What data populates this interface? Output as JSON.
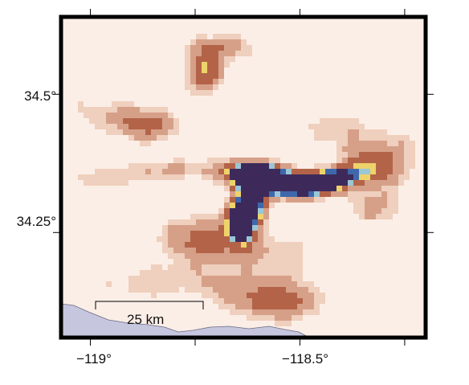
{
  "map": {
    "lat_range": [
      34.06,
      34.64
    ],
    "lon_range": [
      -119.07,
      -118.2
    ],
    "colors": {
      "background": "#fbeee7",
      "light": "#efcfbd",
      "medium": "#d6a088",
      "brown": "#b36448",
      "yellow": "#edd36a",
      "lightblue": "#9bc6d6",
      "blue": "#3f68ac",
      "darkpurple": "#3d2a5b",
      "ocean": "#c6c6df",
      "frame": "#000000"
    },
    "y_ticks": [
      {
        "value": 34.5,
        "label": "34.5°"
      },
      {
        "value": 34.25,
        "label": "34.25°"
      }
    ],
    "x_ticks": [
      {
        "value": -119.0,
        "label": "−119°"
      },
      {
        "value": -118.5,
        "label": "−118.5°"
      }
    ],
    "minor_x_ticks": [
      -118.75,
      -118.25
    ],
    "scale_bar": {
      "label": "25 km",
      "length_km": 25
    }
  }
}
